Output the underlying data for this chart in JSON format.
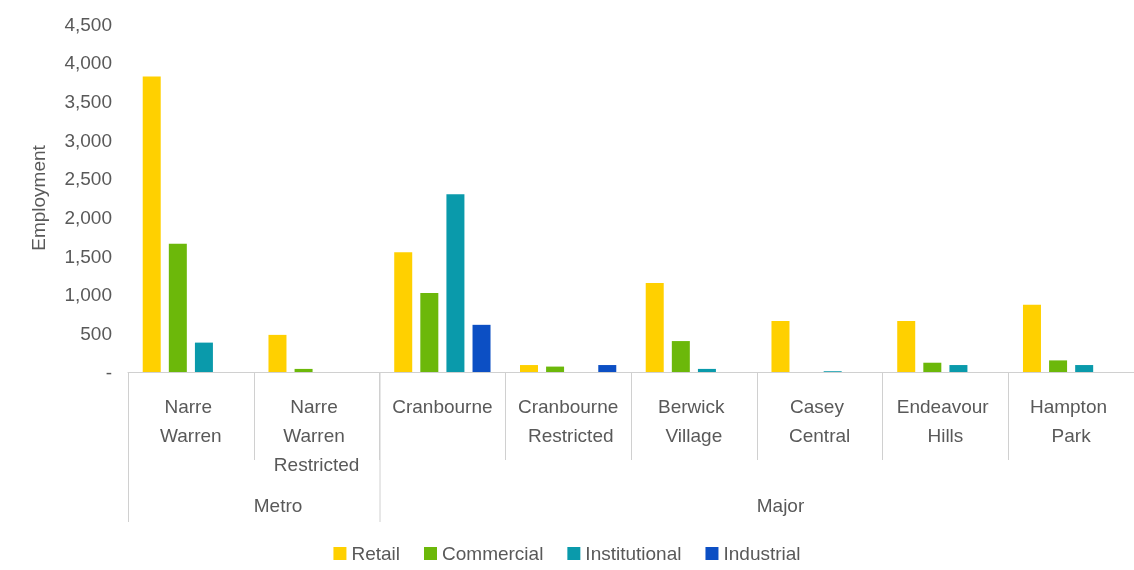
{
  "chart_data": {
    "type": "bar",
    "ylabel": "Employment",
    "categories": [
      "Narre Warren",
      "Narre Warren Restricted",
      "Cranbourne",
      "Cranbourne Restricted",
      "Berwick Village",
      "Casey Central",
      "Endeavour Hills",
      "Hampton Park"
    ],
    "series": [
      {
        "name": "Retail",
        "color": "#ffd000",
        "values": [
          3820,
          480,
          1550,
          90,
          1150,
          660,
          660,
          870
        ]
      },
      {
        "name": "Commercial",
        "color": "#6cb80a",
        "values": [
          1660,
          40,
          1020,
          70,
          400,
          0,
          120,
          150
        ]
      },
      {
        "name": "Institutional",
        "color": "#0a9aab",
        "values": [
          380,
          0,
          2300,
          0,
          40,
          10,
          90,
          90
        ]
      },
      {
        "name": "Industrial",
        "color": "#0c4fc4",
        "values": [
          0,
          0,
          610,
          90,
          0,
          0,
          0,
          0
        ]
      }
    ],
    "ylim": [
      0,
      4500
    ],
    "yticks": [
      {
        "value": 0,
        "label": "-"
      },
      {
        "value": 500,
        "label": "500"
      },
      {
        "value": 1000,
        "label": "1,000"
      },
      {
        "value": 1500,
        "label": "1,500"
      },
      {
        "value": 2000,
        "label": "2,000"
      },
      {
        "value": 2500,
        "label": "2,500"
      },
      {
        "value": 3000,
        "label": "3,000"
      },
      {
        "value": 3500,
        "label": "3,500"
      },
      {
        "value": 4000,
        "label": "4,000"
      },
      {
        "value": 4500,
        "label": "4,500"
      }
    ],
    "grid": false,
    "legend": "bottom",
    "annotations": [
      "Metro",
      "Major"
    ]
  }
}
